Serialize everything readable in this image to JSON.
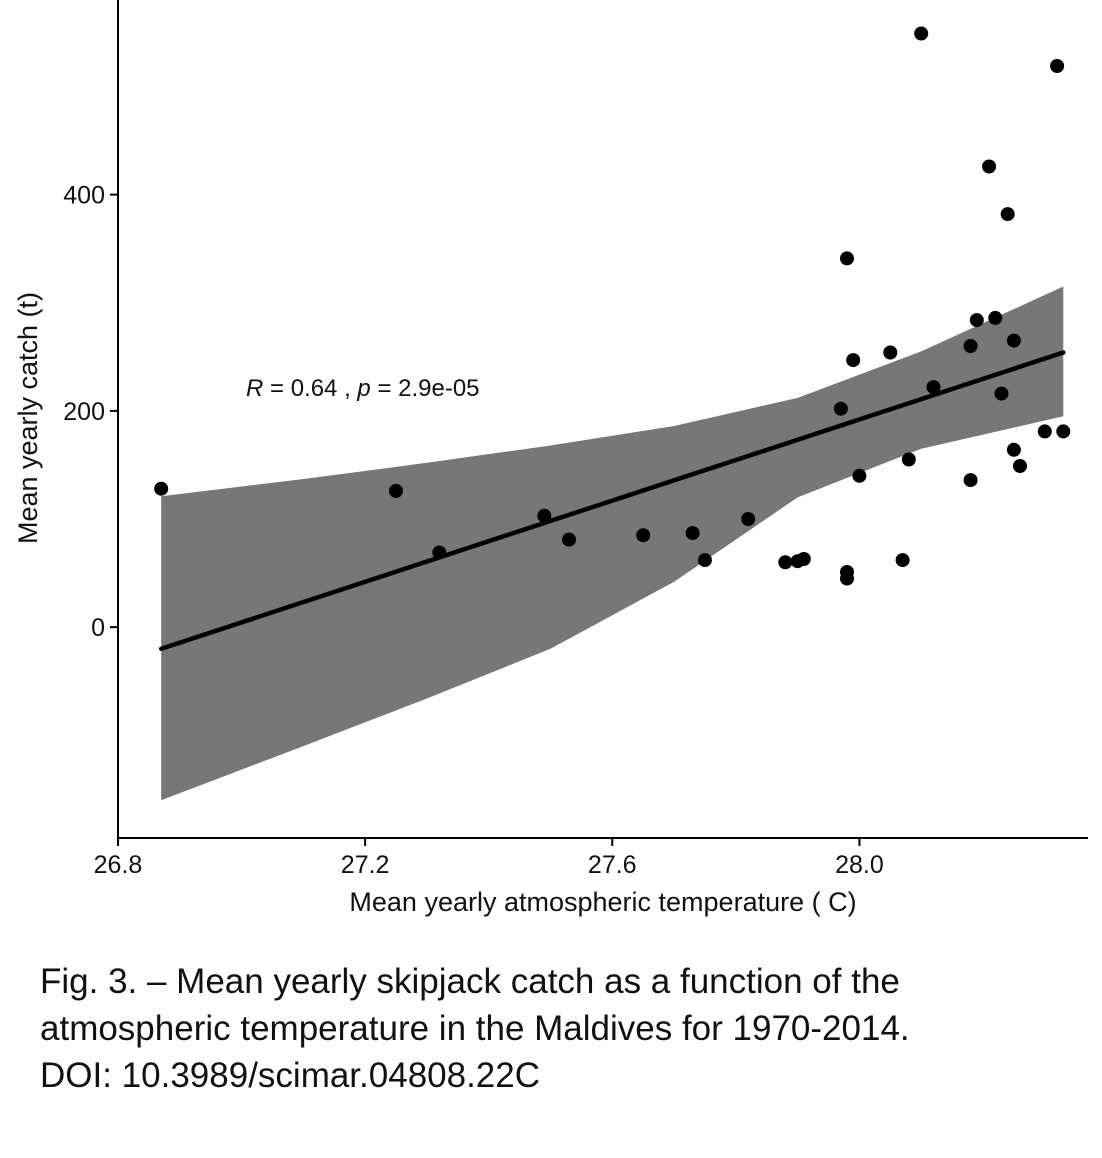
{
  "chart_data": {
    "type": "scatter",
    "xlabel": "Mean yearly atmospheric temperature ( C)",
    "ylabel": "Mean yearly catch (t)",
    "xlim": [
      26.8,
      28.37
    ],
    "ylim": [
      -195,
      580
    ],
    "x_ticks": [
      26.8,
      27.2,
      27.6,
      28.0
    ],
    "x_tick_labels": [
      "26.8",
      "27.2",
      "27.6",
      "28.0"
    ],
    "y_ticks": [
      0,
      200,
      400
    ],
    "y_tick_labels": [
      "0",
      "200",
      "400"
    ],
    "grid": false,
    "annotation": {
      "r_symbol": "R",
      "r_value": " = 0.64 , ",
      "p_symbol": "p",
      "p_value": " = 2.9e-05"
    },
    "fit": {
      "x": [
        26.87,
        28.33
      ],
      "y": [
        -20,
        254
      ]
    },
    "confidence_band": {
      "x": [
        26.87,
        27.1,
        27.3,
        27.5,
        27.7,
        27.9,
        28.1,
        28.33
      ],
      "upper": [
        121,
        137,
        152,
        168,
        186,
        212,
        255,
        315
      ],
      "lower": [
        -160,
        -110,
        -66,
        -20,
        42,
        120,
        165,
        195
      ]
    },
    "points": {
      "x": [
        26.87,
        27.25,
        27.32,
        27.49,
        27.53,
        27.65,
        27.73,
        27.75,
        27.82,
        27.88,
        27.9,
        27.91,
        27.97,
        27.98,
        27.98,
        27.98,
        27.99,
        28.0,
        28.05,
        28.07,
        28.08,
        28.1,
        28.12,
        28.18,
        28.18,
        28.19,
        28.21,
        28.22,
        28.23,
        28.24,
        28.25,
        28.25,
        28.26,
        28.3,
        28.32,
        28.33
      ],
      "y": [
        128,
        126,
        69,
        103,
        81,
        85,
        87,
        62,
        100,
        60,
        61,
        63,
        202,
        341,
        45,
        51,
        247,
        140,
        254,
        62,
        155,
        549,
        222,
        260,
        136,
        284,
        426,
        286,
        216,
        382,
        265,
        164,
        149,
        181,
        519,
        181
      ]
    }
  },
  "caption": {
    "line1": "Fig. 3. – Mean yearly skipjack catch as a function of the",
    "line2": "atmospheric temperature in the Maldives for 1970-2014.",
    "line3": "DOI: 10.3989/scimar.04808.22C"
  },
  "colors": {
    "band": "#777777",
    "line": "#000000",
    "point": "#000000",
    "axis": "#000000",
    "text": "#111111"
  }
}
